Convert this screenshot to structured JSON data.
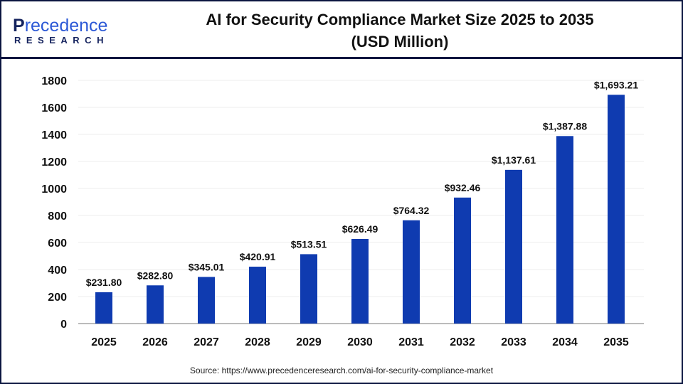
{
  "logo": {
    "line1": "Precedence",
    "line2": "RESEARCH"
  },
  "title": "AI for Security Compliance Market Size 2025 to 2035",
  "subtitle": "(USD Million)",
  "source": "Source: https://www.precedenceresearch.com/ai-for-security-compliance-market",
  "chart_data": {
    "type": "bar",
    "title": "AI for Security Compliance Market Size 2025 to 2035 (USD Million)",
    "categories": [
      "2025",
      "2026",
      "2027",
      "2028",
      "2029",
      "2030",
      "2031",
      "2032",
      "2033",
      "2034",
      "2035"
    ],
    "values": [
      231.8,
      282.8,
      345.01,
      420.91,
      513.51,
      626.49,
      764.32,
      932.46,
      1137.61,
      1387.88,
      1693.21
    ],
    "data_labels": [
      "$231.80",
      "$282.80",
      "$345.01",
      "$420.91",
      "$513.51",
      "$626.49",
      "$764.32",
      "$932.46",
      "$1,137.61",
      "$1,387.88",
      "$1,693.21"
    ],
    "yticks": [
      0,
      200,
      400,
      600,
      800,
      1000,
      1200,
      1400,
      1600,
      1800
    ],
    "ylim": [
      0,
      1800
    ],
    "xlabel": "",
    "ylabel": "",
    "grid": true,
    "bar_color": "#0f3bb0"
  }
}
